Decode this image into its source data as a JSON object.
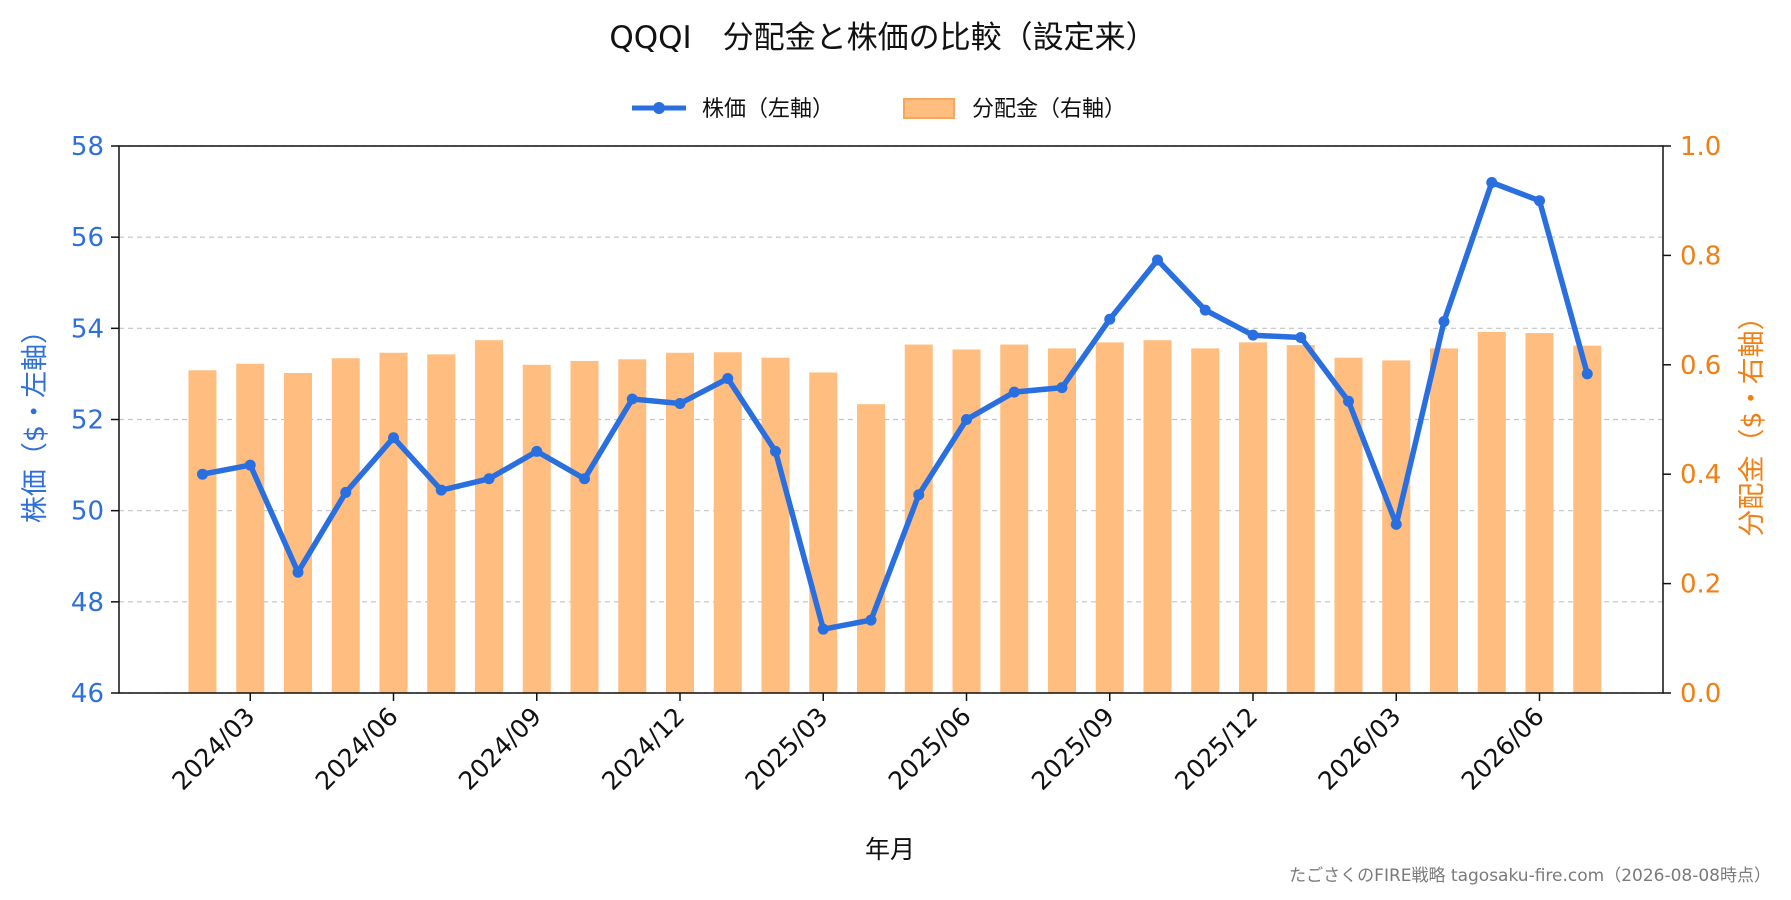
{
  "chart_data": {
    "type": "bar+line",
    "title": "QQQI　分配金と株価の比較（設定来）",
    "xlabel": "年月",
    "ylabel_left": "株価（$・左軸）",
    "ylabel_right": "分配金（$・右軸）",
    "ylim_left": [
      46,
      58
    ],
    "ylim_right": [
      0.0,
      1.0
    ],
    "yticks_left": [
      "46",
      "48",
      "50",
      "52",
      "54",
      "56",
      "58"
    ],
    "yticks_right": [
      "0.0",
      "0.2",
      "0.4",
      "0.6",
      "0.8",
      "1.0"
    ],
    "grid": "horizontal-dashed",
    "legend_position": "top-center",
    "x_tick_labels": [
      {
        "label": "2024/03",
        "index": 1
      },
      {
        "label": "2024/06",
        "index": 4
      },
      {
        "label": "2024/09",
        "index": 7
      },
      {
        "label": "2024/12",
        "index": 10
      },
      {
        "label": "2025/03",
        "index": 13
      },
      {
        "label": "2025/06",
        "index": 16
      },
      {
        "label": "2025/09",
        "index": 19
      },
      {
        "label": "2025/12",
        "index": 22
      },
      {
        "label": "2026/03",
        "index": 25
      },
      {
        "label": "2026/06",
        "index": 28
      }
    ],
    "categories": [
      "2024/02",
      "2024/03",
      "2024/04",
      "2024/05",
      "2024/06",
      "2024/07",
      "2024/08",
      "2024/09",
      "2024/10",
      "2024/11",
      "2024/12",
      "2025/01",
      "2025/02",
      "2025/03",
      "2025/04",
      "2025/05",
      "2025/06",
      "2025/07",
      "2025/08",
      "2025/09",
      "2025/10",
      "2025/11",
      "2025/12",
      "2026/01",
      "2026/02",
      "2026/03",
      "2026/04",
      "2026/05",
      "2026/06",
      "2026/07"
    ],
    "series": [
      {
        "name": "株価（左軸）",
        "type": "line",
        "axis": "left",
        "color": "#2a6fe0",
        "values": [
          50.8,
          51.0,
          48.65,
          50.4,
          51.6,
          50.45,
          50.7,
          51.3,
          50.7,
          52.45,
          52.35,
          52.9,
          51.3,
          47.4,
          47.6,
          50.35,
          52.0,
          52.6,
          52.7,
          54.2,
          55.5,
          54.4,
          53.85,
          53.8,
          52.4,
          49.7,
          54.15,
          57.2,
          56.8,
          53.0
        ]
      },
      {
        "name": "分配金（右軸）",
        "type": "bar",
        "axis": "right",
        "color": "#ffbd80",
        "values": [
          0.59,
          0.602,
          0.585,
          0.612,
          0.622,
          0.619,
          0.645,
          0.6,
          0.607,
          0.61,
          0.622,
          0.623,
          0.613,
          0.586,
          0.528,
          0.637,
          0.628,
          0.637,
          0.63,
          0.641,
          0.645,
          0.63,
          0.641,
          0.636,
          0.613,
          0.608,
          0.63,
          0.66,
          0.658,
          0.635
        ]
      }
    ]
  },
  "credit": "たごさくのFIRE戦略 tagosaku-fire.com（2026-08-08時点）"
}
